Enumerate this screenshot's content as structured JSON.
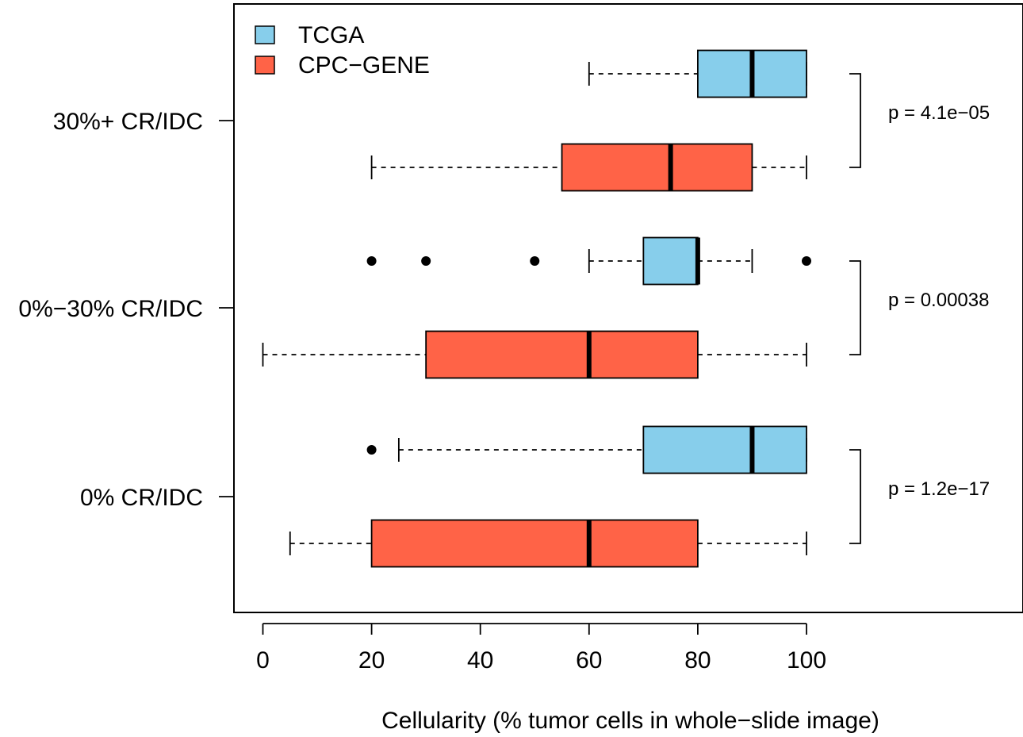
{
  "chart_data": {
    "type": "boxplot",
    "orientation": "horizontal",
    "xlabel": "Cellularity (% tumor cells in whole−slide image)",
    "xticks": [
      0,
      20,
      40,
      60,
      80,
      100
    ],
    "xlim": [
      -10,
      140
    ],
    "categories": [
      "0% CR/IDC",
      "0%−30% CR/IDC",
      "30%+ CR/IDC"
    ],
    "series": [
      {
        "name": "TCGA",
        "color": "#87CEEB",
        "boxes": [
          {
            "category": "0% CR/IDC",
            "whisker_low": 25,
            "q1": 70,
            "median": 90,
            "q3": 100,
            "whisker_high": 100,
            "outliers": [
              20
            ]
          },
          {
            "category": "0%−30% CR/IDC",
            "whisker_low": 60,
            "q1": 70,
            "median": 80,
            "q3": 80,
            "whisker_high": 90,
            "outliers": [
              20,
              30,
              50,
              100
            ]
          },
          {
            "category": "30%+ CR/IDC",
            "whisker_low": 60,
            "q1": 80,
            "median": 90,
            "q3": 100,
            "whisker_high": 100,
            "outliers": []
          }
        ]
      },
      {
        "name": "CPC−GENE",
        "color": "#FF6347",
        "boxes": [
          {
            "category": "0% CR/IDC",
            "whisker_low": 5,
            "q1": 20,
            "median": 60,
            "q3": 80,
            "whisker_high": 100,
            "outliers": []
          },
          {
            "category": "0%−30% CR/IDC",
            "whisker_low": 0,
            "q1": 30,
            "median": 60,
            "q3": 80,
            "whisker_high": 100,
            "outliers": []
          },
          {
            "category": "30%+ CR/IDC",
            "whisker_low": 20,
            "q1": 55,
            "median": 75,
            "q3": 90,
            "whisker_high": 100,
            "outliers": []
          }
        ]
      }
    ],
    "pvalues": [
      {
        "category": "0% CR/IDC",
        "label": "p = 1.2e−17"
      },
      {
        "category": "0%−30% CR/IDC",
        "label": "p = 0.00038"
      },
      {
        "category": "30%+ CR/IDC",
        "label": "p = 4.1e−05"
      }
    ],
    "legend": {
      "position": "top-left",
      "entries": [
        "TCGA",
        "CPC−GENE"
      ]
    }
  }
}
